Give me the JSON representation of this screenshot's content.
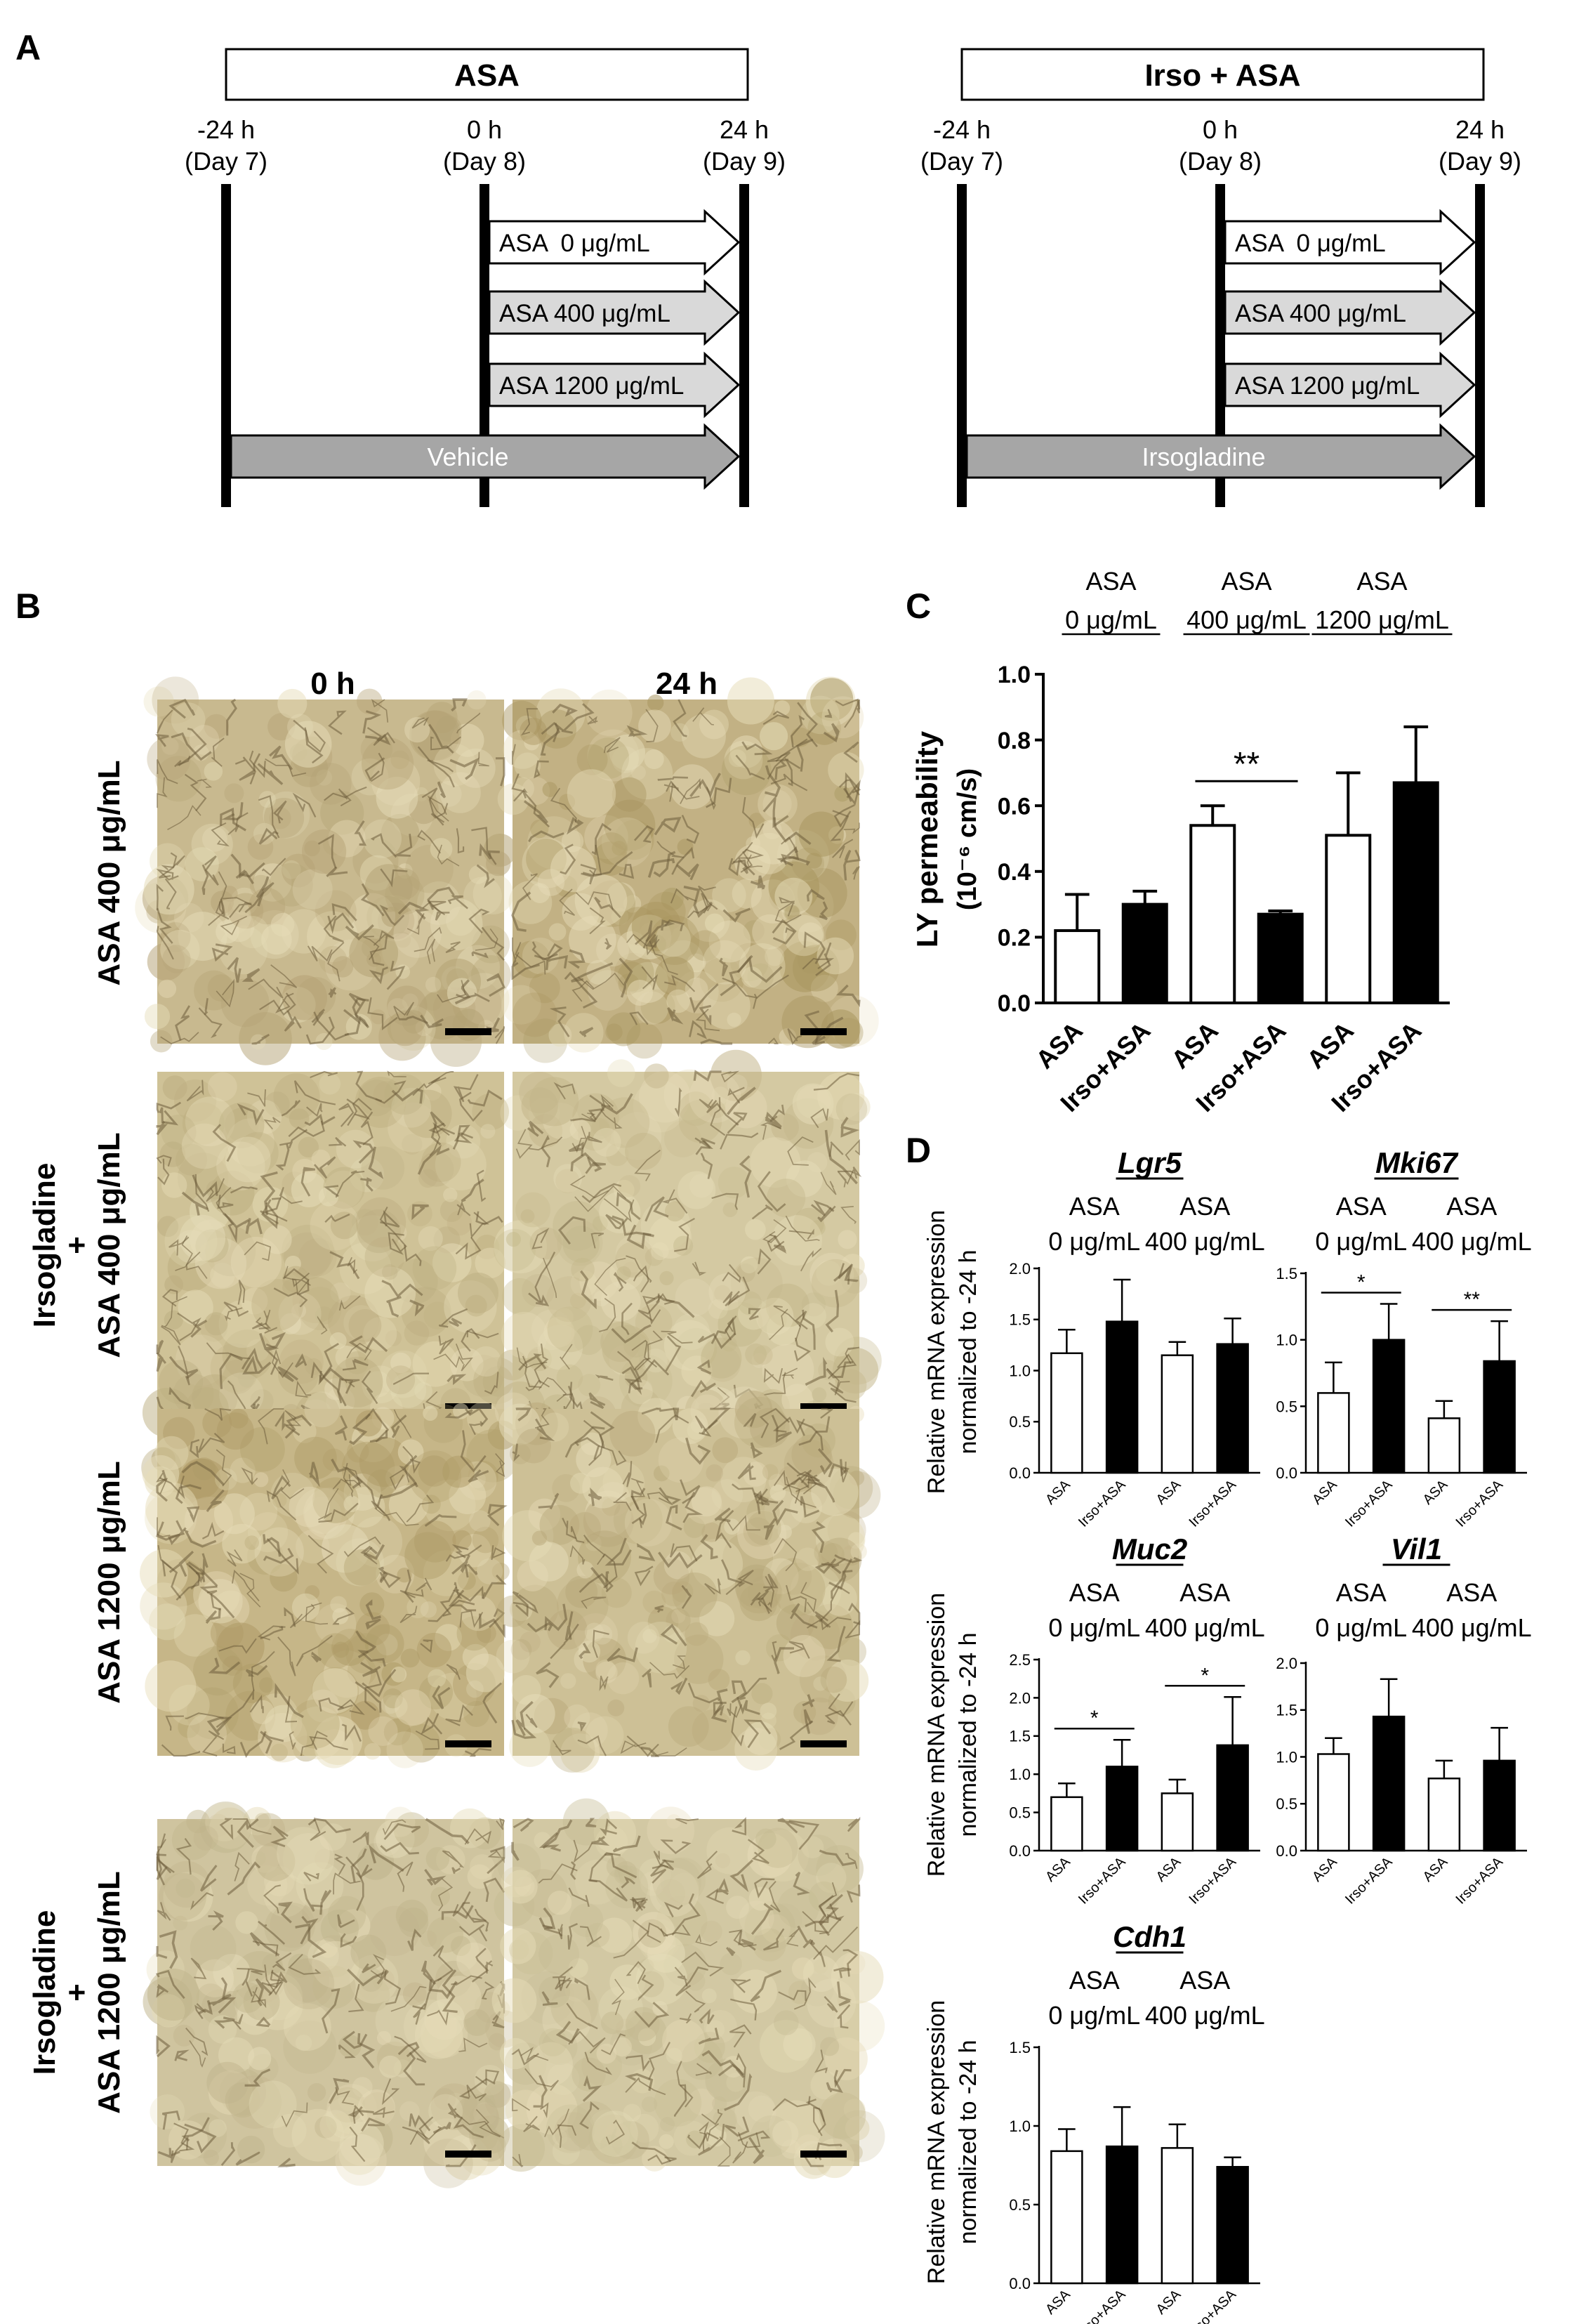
{
  "panels": {
    "a": "A",
    "b": "B",
    "c": "C",
    "d": "D"
  },
  "timeline": {
    "groups": [
      {
        "title": "ASA",
        "base_label": "Vehicle"
      },
      {
        "title": "Irso + ASA",
        "base_label": "Irsogladine"
      }
    ],
    "times": [
      {
        "hour": "-24 h",
        "day": "(Day 7)"
      },
      {
        "hour": "0 h",
        "day": "(Day 8)"
      },
      {
        "hour": "24 h",
        "day": "(Day 9)"
      }
    ],
    "treatments": [
      "ASA  0 μg/mL",
      "ASA 400 μg/mL",
      "ASA 1200 μg/mL"
    ]
  },
  "micrographs": {
    "col_labels": [
      "0 h",
      "24 h"
    ],
    "row_labels": [
      {
        "lines": [
          "ASA 400 μg/mL"
        ]
      },
      {
        "lines": [
          "Irsogladine",
          "+",
          "ASA 400 μg/mL"
        ]
      },
      {
        "lines": [
          "ASA 1200 μg/mL"
        ]
      },
      {
        "lines": [
          "Irsogladine",
          "+",
          "ASA 1200 μg/mL"
        ]
      }
    ],
    "colors": {
      "fill": "#c9b98e",
      "dark": "#6e5c3c",
      "light": "#e6dcb8",
      "scale_bar": "#000000"
    }
  },
  "chart_data": [
    {
      "id": "C",
      "type": "bar",
      "ylabel": "LY permeability",
      "ylabel_unit": "(10⁻⁶ cm/s)",
      "ylim": [
        0,
        1.0
      ],
      "yticks": [
        "0.0",
        "0.2",
        "0.4",
        "0.6",
        "0.8",
        "1.0"
      ],
      "group_labels": [
        {
          "top": "ASA",
          "bottom": "0 μg/mL"
        },
        {
          "top": "ASA",
          "bottom": "400 μg/mL"
        },
        {
          "top": "ASA",
          "bottom": "1200 μg/mL"
        }
      ],
      "categories": [
        "ASA",
        "Irso+ASA",
        "ASA",
        "Irso+ASA",
        "ASA",
        "Irso+ASA"
      ],
      "values": [
        0.22,
        0.3,
        0.54,
        0.27,
        0.51,
        0.67
      ],
      "errors": [
        0.11,
        0.04,
        0.06,
        0.01,
        0.19,
        0.17
      ],
      "fills": [
        "#ffffff",
        "#000000",
        "#ffffff",
        "#000000",
        "#ffffff",
        "#000000"
      ],
      "significance": [
        {
          "from": 2,
          "to": 3,
          "label": "**"
        }
      ]
    },
    {
      "id": "Lgr5",
      "type": "bar",
      "title": "Lgr5",
      "ylim": [
        0,
        2.0
      ],
      "yticks": [
        "0.0",
        "0.5",
        "1.0",
        "1.5",
        "2.0"
      ],
      "group_labels": [
        {
          "top": "ASA",
          "bottom": "0 μg/mL"
        },
        {
          "top": "ASA",
          "bottom": "400 μg/mL"
        }
      ],
      "categories": [
        "ASA",
        "Irso+ASA",
        "ASA",
        "Irso+ASA"
      ],
      "values": [
        1.17,
        1.48,
        1.15,
        1.26
      ],
      "errors": [
        0.23,
        0.41,
        0.13,
        0.25
      ],
      "fills": [
        "#ffffff",
        "#000000",
        "#ffffff",
        "#000000"
      ],
      "significance": []
    },
    {
      "id": "Mki67",
      "type": "bar",
      "title": "Mki67",
      "ylim": [
        0,
        1.5
      ],
      "yticks": [
        "0.0",
        "0.5",
        "1.0",
        "1.5"
      ],
      "group_labels": [
        {
          "top": "ASA",
          "bottom": "0 μg/mL"
        },
        {
          "top": "ASA",
          "bottom": "400 μg/mL"
        }
      ],
      "categories": [
        "ASA",
        "Irso+ASA",
        "ASA",
        "Irso+ASA"
      ],
      "values": [
        0.6,
        1.0,
        0.41,
        0.84
      ],
      "errors": [
        0.23,
        0.27,
        0.13,
        0.3
      ],
      "fills": [
        "#ffffff",
        "#000000",
        "#ffffff",
        "#000000"
      ],
      "significance": [
        {
          "from": 0,
          "to": 1,
          "label": "*"
        },
        {
          "from": 2,
          "to": 3,
          "label": "**"
        }
      ]
    },
    {
      "id": "Muc2",
      "type": "bar",
      "title": "Muc2",
      "ylim": [
        0,
        2.5
      ],
      "yticks": [
        "0.0",
        "0.5",
        "1.0",
        "1.5",
        "2.0",
        "2.5"
      ],
      "group_labels": [
        {
          "top": "ASA",
          "bottom": "0 μg/mL"
        },
        {
          "top": "ASA",
          "bottom": "400 μg/mL"
        }
      ],
      "categories": [
        "ASA",
        "Irso+ASA",
        "ASA",
        "Irso+ASA"
      ],
      "values": [
        0.7,
        1.1,
        0.75,
        1.38
      ],
      "errors": [
        0.18,
        0.35,
        0.18,
        0.63
      ],
      "fills": [
        "#ffffff",
        "#000000",
        "#ffffff",
        "#000000"
      ],
      "significance": [
        {
          "from": 0,
          "to": 1,
          "label": "*"
        },
        {
          "from": 2,
          "to": 3,
          "label": "*"
        }
      ]
    },
    {
      "id": "Vil1",
      "type": "bar",
      "title": "Vil1",
      "ylim": [
        0,
        2.0
      ],
      "yticks": [
        "0.0",
        "0.5",
        "1.0",
        "1.5",
        "2.0"
      ],
      "group_labels": [
        {
          "top": "ASA",
          "bottom": "0 μg/mL"
        },
        {
          "top": "ASA",
          "bottom": "400 μg/mL"
        }
      ],
      "categories": [
        "ASA",
        "Irso+ASA",
        "ASA",
        "Irso+ASA"
      ],
      "values": [
        1.03,
        1.43,
        0.77,
        0.96
      ],
      "errors": [
        0.17,
        0.4,
        0.19,
        0.35
      ],
      "fills": [
        "#ffffff",
        "#000000",
        "#ffffff",
        "#000000"
      ],
      "significance": []
    },
    {
      "id": "Cdh1",
      "type": "bar",
      "title": "Cdh1",
      "ylim": [
        0,
        1.5
      ],
      "yticks": [
        "0.0",
        "0.5",
        "1.0",
        "1.5"
      ],
      "group_labels": [
        {
          "top": "ASA",
          "bottom": "0 μg/mL"
        },
        {
          "top": "ASA",
          "bottom": "400 μg/mL"
        }
      ],
      "categories": [
        "ASA",
        "Irso+ASA",
        "ASA",
        "Irso+ASA"
      ],
      "values": [
        0.84,
        0.87,
        0.86,
        0.74
      ],
      "errors": [
        0.14,
        0.25,
        0.15,
        0.06
      ],
      "fills": [
        "#ffffff",
        "#000000",
        "#ffffff",
        "#000000"
      ],
      "significance": []
    }
  ],
  "mrna_ylabel": {
    "line1": "Relative mRNA expression",
    "line2": "normalized to -24 h"
  }
}
